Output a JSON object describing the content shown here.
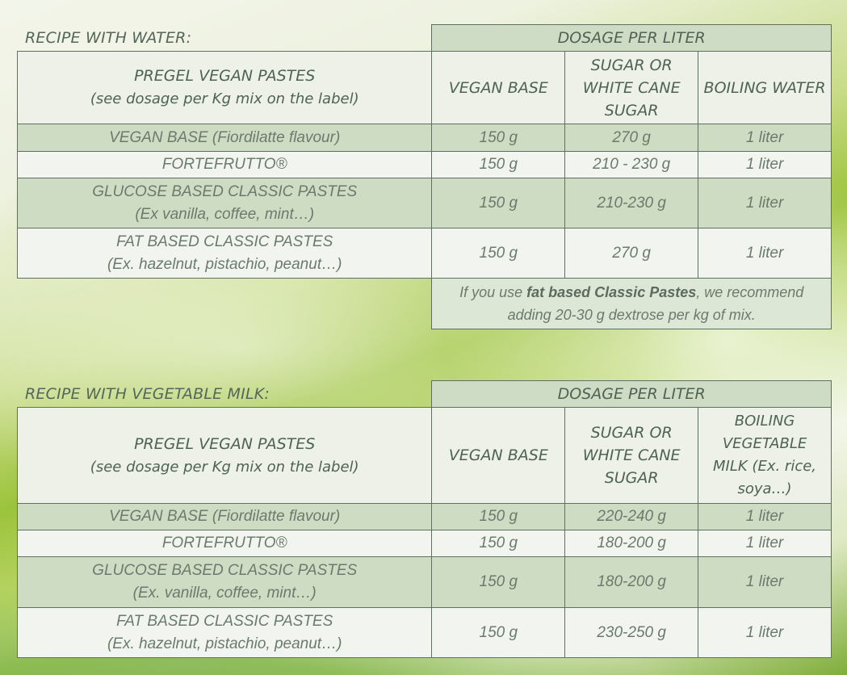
{
  "water": {
    "title": "RECIPE WITH WATER:",
    "dosage_header": "DOSAGE PER LITER",
    "headers": [
      {
        "line1": "PREGEL VEGAN PASTES",
        "line2": "(see dosage per Kg mix on the label)"
      },
      "VEGAN BASE",
      "SUGAR OR WHITE CANE SUGAR",
      "BOILING WATER"
    ],
    "rows": [
      [
        "VEGAN BASE (Fiordilatte flavour)",
        "150 g",
        "270 g",
        "1 liter"
      ],
      [
        "FORTEFRUTTO®",
        "150 g",
        "210 - 230 g",
        "1 liter"
      ],
      [
        "GLUCOSE BASED CLASSIC PASTES",
        "150 g",
        "210-230 g",
        "1 liter",
        "(Ex vanilla, coffee, mint…)"
      ],
      [
        "FAT BASED CLASSIC PASTES",
        "150 g",
        "270 g",
        "1 liter",
        "(Ex. hazelnut, pistachio, peanut…)"
      ]
    ],
    "note": {
      "pre": "If you use ",
      "bold": "fat based Classic Pastes",
      "post": ", we recommend",
      "line2": "adding 20-30 g dextrose per kg of mix."
    }
  },
  "milk": {
    "title": "RECIPE WITH VEGETABLE MILK:",
    "dosage_header": "DOSAGE PER LITER",
    "headers": [
      {
        "line1": "PREGEL VEGAN PASTES",
        "line2": "(see dosage per Kg mix on the label)"
      },
      "VEGAN BASE",
      "SUGAR OR WHITE CANE SUGAR",
      "BOILING VEGETABLE MILK (Ex. rice, soya…)"
    ],
    "rows": [
      [
        "VEGAN BASE (Fiordilatte flavour)",
        "150 g",
        "220-240 g",
        "1 liter"
      ],
      [
        "FORTEFRUTTO®",
        "150 g",
        "180-200 g",
        "1 liter"
      ],
      [
        "GLUCOSE BASED CLASSIC PASTES",
        "150 g",
        "180-200 g",
        "1 liter",
        "(Ex. vanilla, coffee, mint…)"
      ],
      [
        "FAT BASED CLASSIC PASTES",
        "150 g",
        "230-250 g",
        "1 liter",
        "(Ex. hazelnut, pistachio, peanut…)"
      ]
    ]
  },
  "colors": {
    "header_band": "#cfdcc5",
    "row_dark": "#cfdcc4",
    "row_light": "#f2f5ef",
    "text": "#6a7a6c",
    "border": "#5f6f62"
  }
}
